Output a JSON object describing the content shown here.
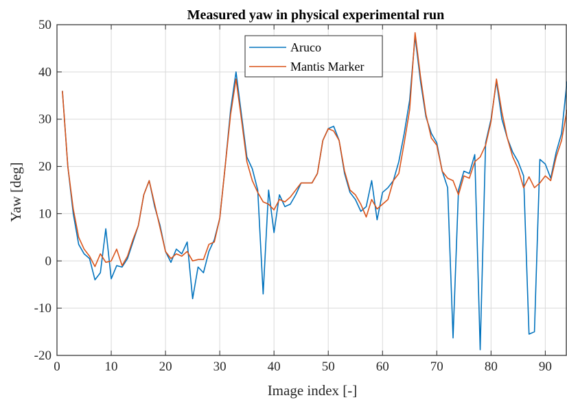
{
  "chart_data": {
    "type": "line",
    "title": "Measured yaw in physical experimental run",
    "xlabel": "Image index [-]",
    "ylabel": "Yaw [deg]",
    "xlim": [
      0,
      94
    ],
    "ylim": [
      -20,
      50
    ],
    "xticks": [
      0,
      10,
      20,
      30,
      40,
      50,
      60,
      70,
      80,
      90
    ],
    "yticks": [
      -20,
      -10,
      0,
      10,
      20,
      30,
      40,
      50
    ],
    "grid": true,
    "legend_position": "top-center",
    "x": [
      1,
      2,
      3,
      4,
      5,
      6,
      7,
      8,
      9,
      10,
      11,
      12,
      13,
      14,
      15,
      16,
      17,
      18,
      19,
      20,
      21,
      22,
      23,
      24,
      25,
      26,
      27,
      28,
      29,
      30,
      31,
      32,
      33,
      34,
      35,
      36,
      37,
      38,
      39,
      40,
      41,
      42,
      43,
      44,
      45,
      46,
      47,
      48,
      49,
      50,
      51,
      52,
      53,
      54,
      55,
      56,
      57,
      58,
      59,
      60,
      61,
      62,
      63,
      64,
      65,
      66,
      67,
      68,
      69,
      70,
      71,
      72,
      73,
      74,
      75,
      76,
      77,
      78,
      79,
      80,
      81,
      82,
      83,
      84,
      85,
      86,
      87,
      88,
      89,
      90,
      91,
      92,
      93,
      94
    ],
    "series": [
      {
        "name": "Aruco",
        "color": "#0072BD",
        "values": [
          36,
          20,
          10,
          3.5,
          1.5,
          0.5,
          -4,
          -2.5,
          6.8,
          -3.8,
          -1,
          -1.3,
          0.5,
          4,
          7.5,
          14,
          17,
          11.5,
          7.5,
          2,
          -0.3,
          2.5,
          1.5,
          4,
          -8,
          -1.3,
          -2.5,
          2,
          4.5,
          9,
          20,
          32,
          40,
          31,
          22,
          19.5,
          15,
          -7,
          15,
          6,
          14,
          11.5,
          12,
          14,
          16.5,
          16.5,
          16.5,
          18.5,
          25.5,
          28,
          28.5,
          25.5,
          18.5,
          14.5,
          13,
          10.5,
          11.5,
          17,
          8.7,
          14.5,
          15.5,
          17,
          21,
          27,
          34,
          47.5,
          38,
          30.5,
          27,
          25,
          19,
          15.5,
          -16.3,
          15,
          19,
          18.5,
          22.5,
          -18.8,
          25,
          30,
          38,
          30,
          26,
          23,
          21,
          18,
          -15.5,
          -15,
          21.5,
          20.5,
          17.5,
          23,
          27,
          38
        ]
      },
      {
        "name": "Mantis Marker",
        "color": "#D95319",
        "values": [
          36,
          20,
          11,
          5,
          2.5,
          1,
          -1.2,
          1.5,
          -0.3,
          0,
          2.5,
          -1,
          1,
          4.5,
          7.5,
          14,
          17,
          12,
          7,
          2,
          0.5,
          1.5,
          1,
          2,
          0,
          0.3,
          0.3,
          3.5,
          4,
          9,
          20,
          31,
          38.5,
          30,
          21,
          17,
          14.5,
          12.5,
          12,
          10.8,
          13,
          12.5,
          13.5,
          15,
          16.5,
          16.5,
          16.5,
          18.5,
          25.5,
          28,
          27.5,
          25.5,
          19,
          15,
          14,
          12,
          9.3,
          13,
          11,
          12,
          13,
          17,
          18.5,
          25,
          32,
          48.3,
          39,
          31,
          26,
          24.5,
          19,
          17.5,
          17,
          14,
          18,
          17.5,
          21,
          22,
          24.5,
          29.5,
          38.5,
          31.5,
          26,
          22,
          19.5,
          15.5,
          17.8,
          15.5,
          16.5,
          18,
          17,
          22,
          25.5,
          32
        ]
      }
    ]
  }
}
